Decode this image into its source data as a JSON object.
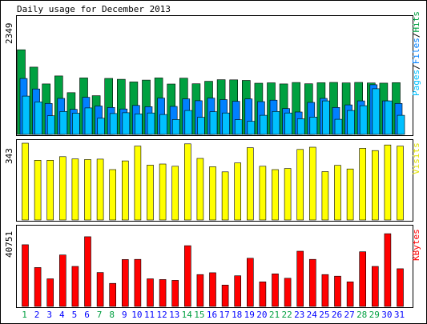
{
  "title": "Daily usage for December 2013",
  "colors": {
    "hits": "#00A040",
    "files": "#0080FF",
    "pages": "#00C0FF",
    "visits": "#FFFF00",
    "kbytes": "#FF0000",
    "weekday_label": "#0000FF",
    "weekend_label": "#00A040"
  },
  "chart_data": [
    {
      "type": "bar",
      "panel": "usage",
      "title": "Daily usage for December 2013",
      "ylabel_top": "2349",
      "legend_text": [
        "Pages",
        "/",
        "Files",
        "/",
        "Hits"
      ],
      "categories": [
        "1",
        "2",
        "3",
        "4",
        "5",
        "6",
        "7",
        "8",
        "9",
        "10",
        "11",
        "12",
        "13",
        "14",
        "15",
        "16",
        "17",
        "18",
        "19",
        "20",
        "21",
        "22",
        "23",
        "24",
        "25",
        "26",
        "27",
        "28",
        "29",
        "30",
        "31"
      ],
      "weekend_days": [
        "1",
        "7",
        "8",
        "14",
        "15",
        "21",
        "22",
        "28",
        "29"
      ],
      "ylim": [
        0,
        2349
      ],
      "series": [
        {
          "name": "Hits",
          "values": [
            1680,
            1335,
            1001,
            1161,
            828,
            1121,
            768,
            1111,
            1094,
            1041,
            1077,
            1121,
            1000,
            1116,
            1005,
            1054,
            1085,
            1083,
            1072,
            1016,
            1024,
            1002,
            1030,
            1004,
            1025,
            1032,
            1022,
            1032,
            1020,
            1018,
            1027
          ]
        },
        {
          "name": "Files",
          "values": [
            1110,
            901,
            615,
            715,
            497,
            737,
            563,
            535,
            505,
            575,
            550,
            720,
            555,
            705,
            668,
            720,
            690,
            657,
            705,
            650,
            679,
            512,
            445,
            635,
            715,
            535,
            585,
            665,
            985,
            665,
            615
          ]
        },
        {
          "name": "Pages",
          "values": [
            760,
            645,
            370,
            455,
            420,
            525,
            320,
            415,
            430,
            407,
            425,
            395,
            295,
            475,
            340,
            450,
            425,
            290,
            260,
            380,
            455,
            425,
            310,
            345,
            665,
            300,
            475,
            570,
            907,
            665,
            380
          ]
        }
      ]
    },
    {
      "type": "bar",
      "panel": "visits",
      "ylabel_top": "343",
      "legend_text": [
        "Visits"
      ],
      "categories": [
        "1",
        "2",
        "3",
        "4",
        "5",
        "6",
        "7",
        "8",
        "9",
        "10",
        "11",
        "12",
        "13",
        "14",
        "15",
        "16",
        "17",
        "18",
        "19",
        "20",
        "21",
        "22",
        "23",
        "24",
        "25",
        "26",
        "27",
        "28",
        "29",
        "30",
        "31"
      ],
      "ylim": [
        0,
        343
      ],
      "series": [
        {
          "name": "Visits",
          "values": [
            343,
            267,
            267,
            283,
            273,
            270,
            272,
            225,
            264,
            330,
            245,
            250,
            240,
            340,
            275,
            238,
            215,
            255,
            323,
            240,
            225,
            230,
            315,
            325,
            216,
            244,
            228,
            320,
            310,
            335,
            330
          ]
        }
      ]
    },
    {
      "type": "bar",
      "panel": "kbytes",
      "ylabel_top": "40751",
      "legend_text": [
        "KBytes"
      ],
      "categories": [
        "1",
        "2",
        "3",
        "4",
        "5",
        "6",
        "7",
        "8",
        "9",
        "10",
        "11",
        "12",
        "13",
        "14",
        "15",
        "16",
        "17",
        "18",
        "19",
        "20",
        "21",
        "22",
        "23",
        "24",
        "25",
        "26",
        "27",
        "28",
        "29",
        "30",
        "31"
      ],
      "ylim": [
        0,
        40751
      ],
      "series": [
        {
          "name": "KBytes",
          "values": [
            32400,
            20400,
            14500,
            27000,
            21000,
            36600,
            17800,
            12100,
            24600,
            24700,
            14500,
            14100,
            13700,
            31900,
            16700,
            17700,
            11200,
            16100,
            25300,
            12900,
            17100,
            14800,
            29000,
            24700,
            16700,
            15900,
            12900,
            28700,
            21000,
            38200,
            19800
          ]
        }
      ]
    }
  ]
}
